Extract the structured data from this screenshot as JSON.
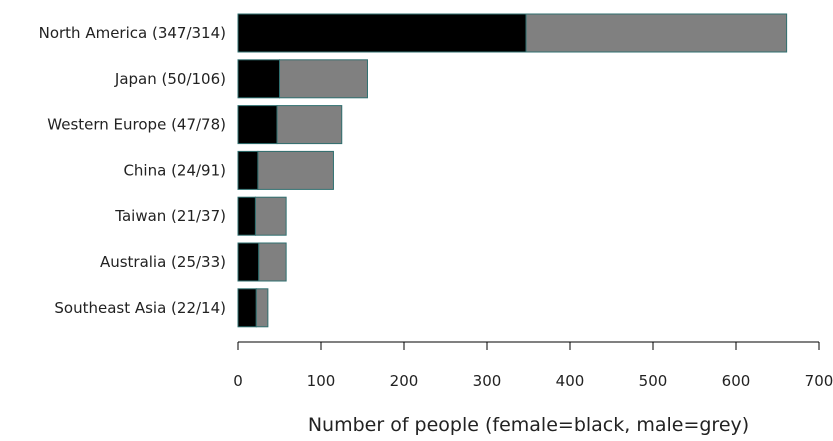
{
  "chart_data": {
    "type": "bar",
    "orientation": "horizontal",
    "stacked": true,
    "categories": [
      "North America (347/314)",
      "Japan (50/106)",
      "Western Europe (47/78)",
      "China (24/91)",
      "Taiwan (21/37)",
      "Australia (25/33)",
      "Southeast Asia (22/14)"
    ],
    "series": [
      {
        "key": "female",
        "values": [
          347,
          50,
          47,
          24,
          21,
          25,
          22
        ],
        "color": "#000000"
      },
      {
        "key": "male",
        "values": [
          314,
          106,
          78,
          91,
          37,
          33,
          14
        ],
        "color": "#808080"
      }
    ],
    "xlabel": "Number of people (female=black, male=grey)",
    "ylabel": "",
    "title": "",
    "xlim": [
      0,
      700
    ],
    "xticks": [
      0,
      100,
      200,
      300,
      400,
      500,
      600,
      700
    ],
    "grid": false,
    "legend": "none",
    "bar_outline_color": "#2f6f6f"
  }
}
